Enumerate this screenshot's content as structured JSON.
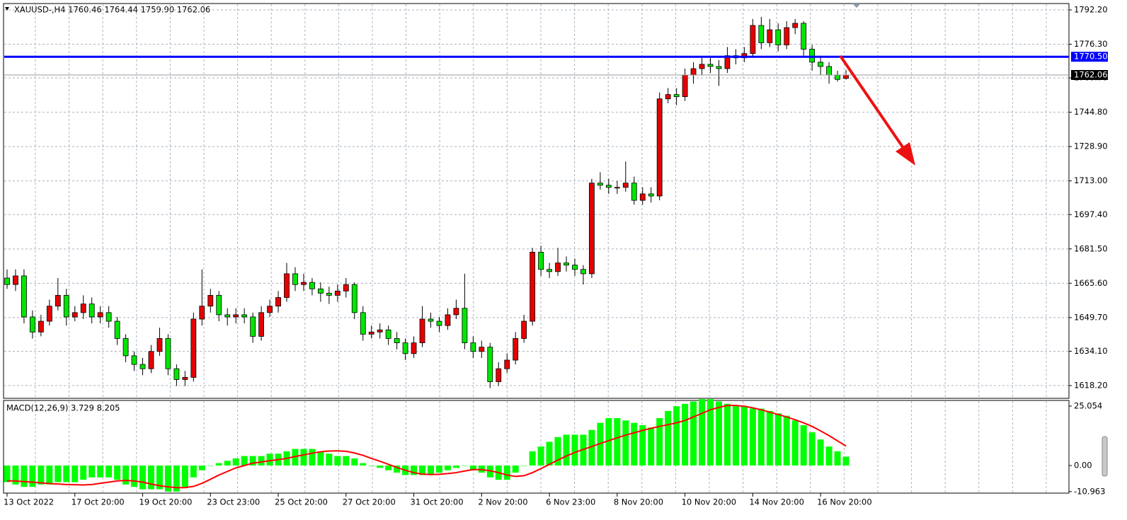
{
  "chart_data": [
    {
      "type": "candlestick",
      "title": "XAUUSD-,H4  1760.46 1764.44 1759.90 1762.06",
      "categories": [
        "13 Oct 2022",
        null,
        null,
        null,
        null,
        null,
        null,
        null,
        "17 Oct 20:00",
        null,
        null,
        null,
        null,
        null,
        null,
        null,
        "19 Oct 20:00",
        null,
        null,
        null,
        null,
        null,
        null,
        null,
        "23 Oct 23:00",
        null,
        null,
        null,
        null,
        null,
        null,
        null,
        "25 Oct 20:00",
        null,
        null,
        null,
        null,
        null,
        null,
        null,
        "27 Oct 20:00",
        null,
        null,
        null,
        null,
        null,
        null,
        null,
        "31 Oct 20:00",
        null,
        null,
        null,
        null,
        null,
        null,
        null,
        "2 Nov 20:00",
        null,
        null,
        null,
        null,
        null,
        null,
        null,
        "6 Nov 23:00",
        null,
        null,
        null,
        null,
        null,
        null,
        null,
        "8 Nov 20:00",
        null,
        null,
        null,
        null,
        null,
        null,
        null,
        "10 Nov 20:00",
        null,
        null,
        null,
        null,
        null,
        null,
        null,
        "14 Nov 20:00",
        null,
        null,
        null,
        null,
        null,
        null,
        null,
        "16 Nov 20:00",
        null,
        null,
        null
      ],
      "open": [
        1668,
        1665,
        1669,
        1650,
        1643,
        1648,
        1655,
        1660,
        1650,
        1652,
        1656,
        1650,
        1652,
        1648,
        1640,
        1632,
        1628,
        1626,
        1634,
        1640,
        1626,
        1621,
        1622,
        1649,
        1655,
        1660,
        1651,
        1650,
        1651,
        1650,
        1641,
        1652,
        1655,
        1659,
        1670,
        1665,
        1666,
        1663,
        1661,
        1660,
        1662,
        1665,
        1652,
        1642,
        1643,
        1644,
        1640,
        1638,
        1633,
        1638,
        1649,
        1648,
        1646,
        1651,
        1654,
        1638,
        1634,
        1636,
        1620,
        1626,
        1630,
        1640,
        1648,
        1680,
        1672,
        1671,
        1675,
        1674,
        1672,
        1670,
        1712,
        1711,
        1710,
        1710,
        1712,
        1704,
        1707,
        1706,
        1751,
        1753,
        1752,
        1762,
        1765,
        1767,
        1766,
        1765,
        1771,
        1770,
        1772,
        1785,
        1777,
        1783,
        1776,
        1784,
        1786,
        1774,
        1768,
        1766,
        1762,
        1760.46
      ],
      "high": [
        1672,
        1672,
        1672,
        1653,
        1651,
        1658,
        1668,
        1663,
        1655,
        1660,
        1659,
        1655,
        1655,
        1650,
        1642,
        1634,
        1631,
        1637,
        1645,
        1642,
        1628,
        1625,
        1652,
        1672,
        1663,
        1662,
        1654,
        1654,
        1654,
        1652,
        1655,
        1658,
        1662,
        1675,
        1673,
        1670,
        1668,
        1666,
        1664,
        1665,
        1668,
        1666,
        1655,
        1646,
        1647,
        1646,
        1643,
        1640,
        1641,
        1655,
        1652,
        1650,
        1654,
        1658,
        1670,
        1641,
        1639,
        1638,
        1629,
        1633,
        1643,
        1651,
        1682,
        1683,
        1675,
        1682,
        1678,
        1677,
        1674,
        1714,
        1717,
        1714,
        1713,
        1722,
        1715,
        1710,
        1710,
        1754,
        1756,
        1756,
        1765,
        1768,
        1770,
        1770,
        1769,
        1775,
        1774,
        1775,
        1788,
        1789,
        1788,
        1786,
        1787,
        1788,
        1787,
        1776,
        1771,
        1768,
        1764,
        1764.44
      ],
      "low": [
        1663,
        1662,
        1647,
        1640,
        1641,
        1646,
        1653,
        1646,
        1648,
        1649,
        1647,
        1647,
        1645,
        1637,
        1629,
        1625,
        1623,
        1624,
        1632,
        1623,
        1618,
        1618,
        1620,
        1646,
        1652,
        1648,
        1646,
        1647,
        1647,
        1638,
        1639,
        1650,
        1652,
        1657,
        1662,
        1662,
        1660,
        1657,
        1656,
        1657,
        1659,
        1649,
        1639,
        1640,
        1640,
        1637,
        1635,
        1630,
        1631,
        1636,
        1645,
        1643,
        1644,
        1649,
        1635,
        1631,
        1631,
        1617,
        1618,
        1624,
        1628,
        1638,
        1646,
        1669,
        1668,
        1669,
        1671,
        1669,
        1665,
        1668,
        1709,
        1707,
        1707,
        1708,
        1702,
        1702,
        1703,
        1704,
        1749,
        1748,
        1750,
        1758,
        1762,
        1763,
        1757,
        1763,
        1767,
        1768,
        1770,
        1774,
        1775,
        1773,
        1774,
        1781,
        1771,
        1764,
        1762,
        1758,
        1759,
        1759.9
      ],
      "close": [
        1665,
        1669,
        1650,
        1643,
        1648,
        1655,
        1660,
        1650,
        1652,
        1656,
        1650,
        1652,
        1648,
        1640,
        1632,
        1628,
        1626,
        1634,
        1640,
        1626,
        1621,
        1622,
        1649,
        1655,
        1660,
        1651,
        1650,
        1651,
        1650,
        1641,
        1652,
        1655,
        1659,
        1670,
        1665,
        1666,
        1663,
        1661,
        1660,
        1662,
        1665,
        1652,
        1642,
        1643,
        1644,
        1640,
        1638,
        1633,
        1638,
        1649,
        1648,
        1646,
        1651,
        1654,
        1638,
        1634,
        1636,
        1620,
        1626,
        1630,
        1640,
        1648,
        1680,
        1672,
        1671,
        1675,
        1674,
        1672,
        1670,
        1712,
        1711,
        1710,
        1710,
        1712,
        1704,
        1707,
        1706,
        1751,
        1753,
        1752,
        1762,
        1765,
        1767,
        1766,
        1765,
        1771,
        1770,
        1772,
        1785,
        1777,
        1783,
        1776,
        1784,
        1786,
        1774,
        1768,
        1766,
        1762,
        1760,
        1762.06
      ],
      "up_color": "#e60000",
      "down_color": "#00e600",
      "ylim": [
        1612.3,
        1795.15
      ],
      "yticks": [
        {
          "value": 1792.2,
          "label": "1792.20"
        },
        {
          "value": 1776.3,
          "label": "1776.30"
        },
        {
          "value": 1760.7,
          "label": "1760.70"
        },
        {
          "value": 1744.8,
          "label": "1744.80"
        },
        {
          "value": 1728.9,
          "label": "1728.90"
        },
        {
          "value": 1713,
          "label": "1713.00"
        },
        {
          "value": 1697.4,
          "label": "1697.40"
        },
        {
          "value": 1681.5,
          "label": "1681.50"
        },
        {
          "value": 1665.6,
          "label": "1665.60"
        },
        {
          "value": 1649.7,
          "label": "1649.70"
        },
        {
          "value": 1634.1,
          "label": "1634.10"
        },
        {
          "value": 1618.2,
          "label": "1618.20"
        }
      ],
      "grid": true,
      "hlines": [
        {
          "value": 1770.5,
          "label": "1770.50",
          "color": "#0000ff"
        }
      ],
      "last_price": {
        "value": 1762.06,
        "label": "1762.06",
        "color": "#000000"
      }
    },
    {
      "type": "macd",
      "title": "MACD(12,26,9) 3.729 8.205",
      "series": [
        {
          "type": "bar",
          "color": "#00ff00",
          "values": [
            -7,
            -8,
            -9,
            -9,
            -8,
            -8,
            -7,
            -7,
            -7,
            -6,
            -5,
            -5,
            -5,
            -6,
            -8,
            -9,
            -10,
            -10,
            -10,
            -11,
            -11,
            -9,
            -5,
            -2,
            0,
            1,
            2,
            3,
            4,
            4,
            4,
            5,
            5,
            6,
            7,
            7,
            7,
            6,
            5,
            4,
            4,
            3,
            1,
            0,
            -1,
            -2,
            -3,
            -4,
            -4,
            -4,
            -4,
            -3,
            -2,
            -1,
            0,
            -2,
            -3,
            -5,
            -6,
            -6,
            -3,
            0,
            6,
            8,
            10,
            12,
            13,
            13,
            13,
            15,
            18,
            20,
            20,
            19,
            18,
            17,
            16,
            20,
            23,
            25,
            26,
            27,
            28,
            28,
            27,
            26,
            25,
            25,
            24,
            24,
            23,
            22,
            21,
            19,
            17,
            14,
            11,
            8,
            6,
            3.729
          ]
        },
        {
          "type": "line",
          "color": "#ff0000",
          "values": [
            -6.5,
            -6.5,
            -6.8,
            -7,
            -7.3,
            -7.6,
            -7.8,
            -8,
            -8.1,
            -8.2,
            -8,
            -7.5,
            -7,
            -6.5,
            -6.3,
            -6.5,
            -7,
            -7.8,
            -8.5,
            -9,
            -9.3,
            -9.3,
            -8.8,
            -7.5,
            -5.8,
            -4,
            -2.5,
            -1,
            0,
            1,
            1.5,
            2,
            2.5,
            3,
            3.8,
            4.5,
            5.2,
            5.8,
            6.1,
            6.2,
            6,
            5.3,
            4.3,
            3,
            1.8,
            0.5,
            -0.8,
            -2,
            -3,
            -3.6,
            -3.8,
            -3.7,
            -3.4,
            -3,
            -2.3,
            -1.7,
            -1.7,
            -2.2,
            -3,
            -4,
            -4.6,
            -4.3,
            -3,
            -1.3,
            0.5,
            2.3,
            4,
            5.5,
            6.8,
            8,
            9.3,
            10.5,
            11.7,
            12.8,
            13.8,
            14.8,
            15.7,
            16.5,
            17.2,
            18,
            19,
            20.5,
            22,
            23.5,
            24.5,
            25.3,
            25.3,
            25,
            24.3,
            23.5,
            22.5,
            21.5,
            20.5,
            19.3,
            18,
            16.5,
            14.6,
            12.6,
            10.4,
            8.205
          ]
        }
      ],
      "ylim": [
        -11.63,
        27.44
      ],
      "yticks": [
        25.054,
        {
          "value": 0,
          "label": "0.00"
        },
        -10.963
      ]
    }
  ]
}
